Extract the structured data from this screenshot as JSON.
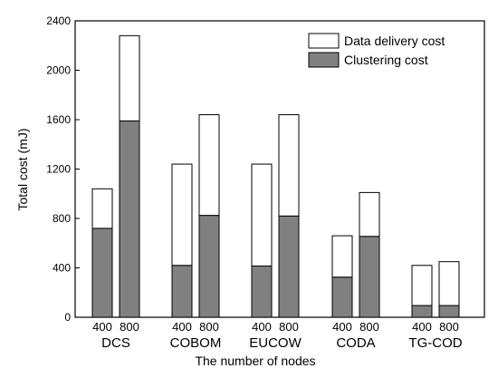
{
  "chart_data": {
    "type": "bar",
    "stacked": true,
    "xlabel": "The number of nodes",
    "ylabel": "Total cost (mJ)",
    "ylim": [
      0,
      2400
    ],
    "yticks": [
      0,
      400,
      800,
      1200,
      1600,
      2000,
      2400
    ],
    "ytick_labels": [
      "0",
      "400",
      "800",
      "1200",
      "1600",
      "2000",
      "2400"
    ],
    "groups": [
      "DCS",
      "COBOM",
      "EUCOW",
      "CODA",
      "TG-COD"
    ],
    "subcategories": [
      "400",
      "800"
    ],
    "series": [
      {
        "name": "Clustering cost",
        "color": "#808080",
        "values": [
          [
            720,
            1590
          ],
          [
            420,
            825
          ],
          [
            415,
            820
          ],
          [
            325,
            655
          ],
          [
            95,
            95
          ]
        ]
      },
      {
        "name": "Data delivery cost",
        "color": "#ffffff",
        "values": [
          [
            320,
            690
          ],
          [
            820,
            815
          ],
          [
            825,
            820
          ],
          [
            335,
            355
          ],
          [
            325,
            355
          ]
        ]
      }
    ],
    "totals": [
      [
        1040,
        2280
      ],
      [
        1240,
        1640
      ],
      [
        1240,
        1640
      ],
      [
        660,
        1010
      ],
      [
        420,
        450
      ]
    ],
    "legend": {
      "position": "top-right",
      "entries": [
        {
          "label": "Data delivery cost",
          "color": "#ffffff"
        },
        {
          "label": "Clustering cost",
          "color": "#808080"
        }
      ]
    },
    "grid": false
  }
}
